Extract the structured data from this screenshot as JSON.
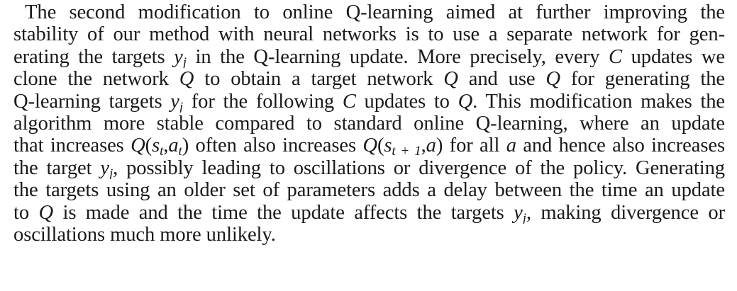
{
  "paragraph": {
    "l1": "The second modification to online Q-learning aimed at further improving the",
    "l2": "stability of our method with neural networks is to use a separate network for gen-",
    "l3a": "erating the targets ",
    "l3b": " in the Q-learning update. More precisely, every ",
    "l3c": " updates we",
    "l4a": "clone the network ",
    "l4b": " to obtain a target network ",
    "l4c": " and use ",
    "l4d": " for generating the",
    "l5a": "Q-learning targets ",
    "l5b": " for the following ",
    "l5c": " updates to ",
    "l5d": ". This modification makes the",
    "l6": "algorithm more stable compared to standard online Q-learning, where an update",
    "l7a": "that increases ",
    "l7b": " often also increases ",
    "l7c": " for all ",
    "l7d": " and hence also increases",
    "l8a": "the target ",
    "l8b": ", possibly leading to oscillations or divergence of the policy. Generating",
    "l9": "the targets using an older set of parameters adds a delay between the time an update",
    "l10a": "to ",
    "l10b": " is made and the time the update affects the targets ",
    "l10c": ", making divergence or",
    "l11": "oscillations much more unlikely."
  },
  "math": {
    "y": "y",
    "j": "j",
    "C": "C",
    "Q": "Q",
    "Qhat": "Q",
    "s": "s",
    "t": "t",
    "a": "a",
    "t_plus_1": "t + 1",
    "open": "(",
    "close": ")",
    "comma": ","
  }
}
